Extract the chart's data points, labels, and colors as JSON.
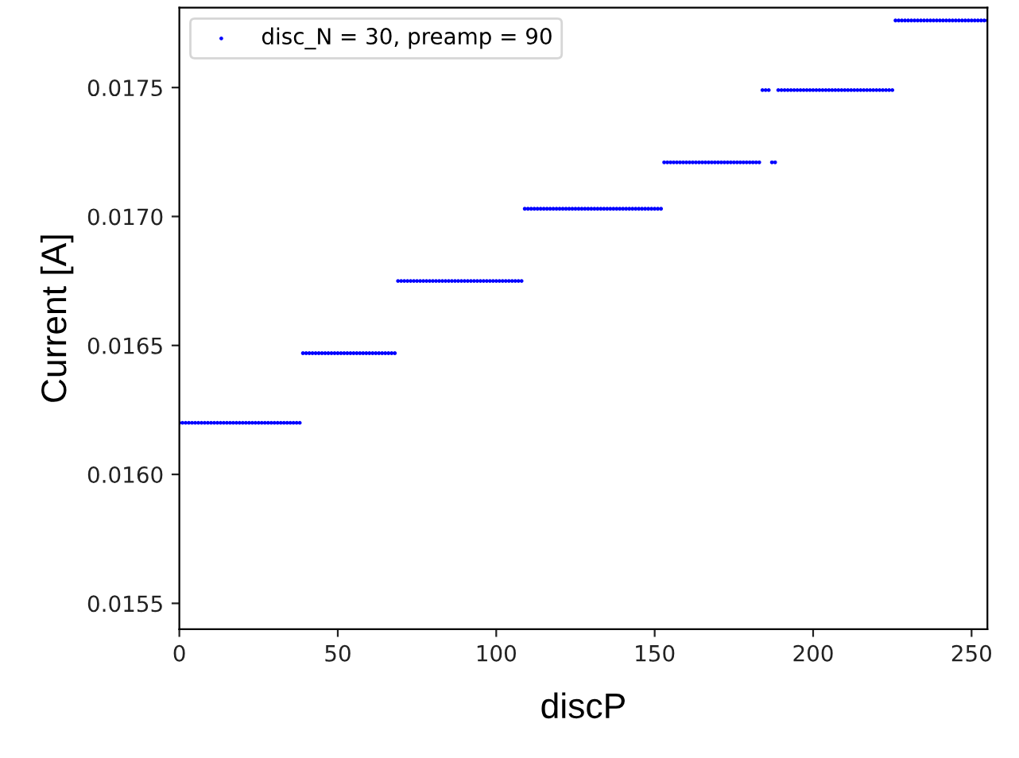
{
  "chart_data": {
    "type": "scatter",
    "xlabel": "discP",
    "ylabel": "Current [A]",
    "xlim": [
      0,
      255
    ],
    "ylim": [
      0.0154,
      0.01781
    ],
    "xticks": [
      0,
      50,
      100,
      150,
      200,
      250
    ],
    "yticks": [
      0.0155,
      {
        "value": 0.016,
        "label": "0.0160"
      },
      0.0165,
      {
        "value": 0.017,
        "label": "0.0170"
      },
      0.0175
    ],
    "legend": "top left",
    "marker": "circle",
    "grid": false,
    "series": [
      {
        "name": "disc_N = 30, preamp = 90",
        "color": "#0000ff",
        "x": [
          0,
          1,
          2,
          3,
          4,
          5,
          6,
          7,
          8,
          9,
          10,
          11,
          12,
          13,
          14,
          15,
          16,
          17,
          18,
          19,
          20,
          21,
          22,
          23,
          24,
          25,
          26,
          27,
          28,
          29,
          30,
          31,
          32,
          33,
          34,
          35,
          36,
          37,
          38,
          39,
          40,
          41,
          42,
          43,
          44,
          45,
          46,
          47,
          48,
          49,
          50,
          51,
          52,
          53,
          54,
          55,
          56,
          57,
          58,
          59,
          60,
          61,
          62,
          63,
          64,
          65,
          66,
          67,
          68,
          69,
          70,
          71,
          72,
          73,
          74,
          75,
          76,
          77,
          78,
          79,
          80,
          81,
          82,
          83,
          84,
          85,
          86,
          87,
          88,
          89,
          90,
          91,
          92,
          93,
          94,
          95,
          96,
          97,
          98,
          99,
          100,
          101,
          102,
          103,
          104,
          105,
          106,
          107,
          108,
          109,
          110,
          111,
          112,
          113,
          114,
          115,
          116,
          117,
          118,
          119,
          120,
          121,
          122,
          123,
          124,
          125,
          126,
          127,
          128,
          129,
          130,
          131,
          132,
          133,
          134,
          135,
          136,
          137,
          138,
          139,
          140,
          141,
          142,
          143,
          144,
          145,
          146,
          147,
          148,
          149,
          150,
          151,
          152,
          153,
          154,
          155,
          156,
          157,
          158,
          159,
          160,
          161,
          162,
          163,
          164,
          165,
          166,
          167,
          168,
          169,
          170,
          171,
          172,
          173,
          174,
          175,
          176,
          177,
          178,
          179,
          180,
          181,
          182,
          183,
          184,
          185,
          186,
          187,
          188,
          189,
          190,
          191,
          192,
          193,
          194,
          195,
          196,
          197,
          198,
          199,
          200,
          201,
          202,
          203,
          204,
          205,
          206,
          207,
          208,
          209,
          210,
          211,
          212,
          213,
          214,
          215,
          216,
          217,
          218,
          219,
          220,
          221,
          222,
          223,
          224,
          225,
          226,
          227,
          228,
          229,
          230,
          231,
          232,
          233,
          234,
          235,
          236,
          237,
          238,
          239,
          240,
          241,
          242,
          243,
          244,
          245,
          246,
          247,
          248,
          249,
          250,
          251,
          252,
          253,
          254,
          255
        ],
        "values": [
          0.0162,
          0.0162,
          0.0162,
          0.0162,
          0.0162,
          0.0162,
          0.0162,
          0.0162,
          0.0162,
          0.0162,
          0.0162,
          0.0162,
          0.0162,
          0.0162,
          0.0162,
          0.0162,
          0.0162,
          0.0162,
          0.0162,
          0.0162,
          0.0162,
          0.0162,
          0.0162,
          0.0162,
          0.0162,
          0.0162,
          0.0162,
          0.0162,
          0.0162,
          0.0162,
          0.0162,
          0.0162,
          0.0162,
          0.0162,
          0.0162,
          0.0162,
          0.0162,
          0.0162,
          0.0162,
          0.01647,
          0.01647,
          0.01647,
          0.01647,
          0.01647,
          0.01647,
          0.01647,
          0.01647,
          0.01647,
          0.01647,
          0.01647,
          0.01647,
          0.01647,
          0.01647,
          0.01647,
          0.01647,
          0.01647,
          0.01647,
          0.01647,
          0.01647,
          0.01647,
          0.01647,
          0.01647,
          0.01647,
          0.01647,
          0.01647,
          0.01647,
          0.01647,
          0.01647,
          0.01647,
          0.01675,
          0.01675,
          0.01675,
          0.01675,
          0.01675,
          0.01675,
          0.01675,
          0.01675,
          0.01675,
          0.01675,
          0.01675,
          0.01675,
          0.01675,
          0.01675,
          0.01675,
          0.01675,
          0.01675,
          0.01675,
          0.01675,
          0.01675,
          0.01675,
          0.01675,
          0.01675,
          0.01675,
          0.01675,
          0.01675,
          0.01675,
          0.01675,
          0.01675,
          0.01675,
          0.01675,
          0.01675,
          0.01675,
          0.01675,
          0.01675,
          0.01675,
          0.01675,
          0.01675,
          0.01675,
          0.01675,
          0.01703,
          0.01703,
          0.01703,
          0.01703,
          0.01703,
          0.01703,
          0.01703,
          0.01703,
          0.01703,
          0.01703,
          0.01703,
          0.01703,
          0.01703,
          0.01703,
          0.01703,
          0.01703,
          0.01703,
          0.01703,
          0.01703,
          0.01703,
          0.01703,
          0.01703,
          0.01703,
          0.01703,
          0.01703,
          0.01703,
          0.01703,
          0.01703,
          0.01703,
          0.01703,
          0.01703,
          0.01703,
          0.01703,
          0.01703,
          0.01703,
          0.01703,
          0.01703,
          0.01703,
          0.01703,
          0.01703,
          0.01703,
          0.01703,
          0.01703,
          0.01703,
          0.01721,
          0.01721,
          0.01721,
          0.01721,
          0.01721,
          0.01721,
          0.01721,
          0.01721,
          0.01721,
          0.01721,
          0.01721,
          0.01721,
          0.01721,
          0.01721,
          0.01721,
          0.01721,
          0.01721,
          0.01721,
          0.01721,
          0.01721,
          0.01721,
          0.01721,
          0.01721,
          0.01721,
          0.01721,
          0.01721,
          0.01721,
          0.01721,
          0.01721,
          0.01721,
          0.01721,
          0.01749,
          0.01749,
          0.01749,
          0.01721,
          0.01721,
          0.01749,
          0.01749,
          0.01749,
          0.01749,
          0.01749,
          0.01749,
          0.01749,
          0.01749,
          0.01749,
          0.01749,
          0.01749,
          0.01749,
          0.01749,
          0.01749,
          0.01749,
          0.01749,
          0.01749,
          0.01749,
          0.01749,
          0.01749,
          0.01749,
          0.01749,
          0.01749,
          0.01749,
          0.01749,
          0.01749,
          0.01749,
          0.01749,
          0.01749,
          0.01749,
          0.01749,
          0.01749,
          0.01749,
          0.01749,
          0.01749,
          0.01749,
          0.01749,
          0.01776,
          0.01776,
          0.01776,
          0.01776,
          0.01776,
          0.01776,
          0.01776,
          0.01776,
          0.01776,
          0.01776,
          0.01776,
          0.01776,
          0.01776,
          0.01776,
          0.01776,
          0.01776,
          0.01776,
          0.01776,
          0.01776,
          0.01776,
          0.01776,
          0.01776,
          0.01776,
          0.01776,
          0.01776,
          0.01776,
          0.01776,
          0.01776,
          0.01776,
          0.01776
        ]
      }
    ]
  }
}
